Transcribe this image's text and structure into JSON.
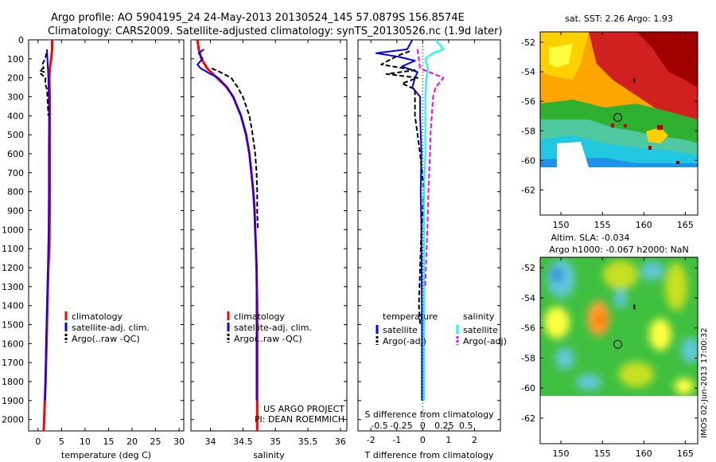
{
  "header": {
    "line1": "Argo profile: AO 5904195_24 24-May-2013 20130524_145 57.0879S 156.8574E",
    "line2": "Climatology: CARS2009. Satellite-adjusted climatology: synTS_20130526.nc (1.9d later)"
  },
  "colors": {
    "climatology": "#ff0000",
    "satellite": "#0000ff",
    "argo": "#000000",
    "salinity_satellite": "#00ffff",
    "salinity_argo": "#ff00ff"
  },
  "chart_data": [
    {
      "type": "line",
      "id": "temperature",
      "xlabel": "temperature (deg C)",
      "ylabel": "",
      "xlim": [
        -2,
        31
      ],
      "ylim": [
        2060,
        0
      ],
      "xticks": [
        0,
        5,
        10,
        15,
        20,
        25,
        30
      ],
      "yticks": [
        0,
        100,
        200,
        300,
        400,
        500,
        600,
        700,
        800,
        900,
        1000,
        1100,
        1200,
        1300,
        1400,
        1500,
        1600,
        1700,
        1800,
        1900,
        2000
      ],
      "legend": [
        "climatology",
        "satellite-adj. clim.",
        "Argo(..raw -QC)"
      ],
      "series": [
        {
          "key": "climatology",
          "style": "solid",
          "width": 3,
          "depth": [
            0,
            50,
            100,
            150,
            200,
            300,
            400,
            600,
            800,
            1000,
            1100,
            1200,
            1400,
            1600,
            1800,
            2000,
            2060
          ],
          "values": [
            3.0,
            3.0,
            2.8,
            2.5,
            2.4,
            2.5,
            2.5,
            2.5,
            2.5,
            2.45,
            2.4,
            2.2,
            2.0,
            1.8,
            1.6,
            1.3,
            1.2
          ]
        },
        {
          "key": "satellite",
          "style": "solid",
          "width": 2,
          "depth": [
            50,
            100,
            150,
            200,
            300,
            400,
            600,
            800,
            1000,
            1200,
            1400,
            1600,
            1800,
            1900
          ],
          "values": [
            1.9,
            2.0,
            2.1,
            2.2,
            2.3,
            2.35,
            2.3,
            2.3,
            2.25,
            2.1,
            1.9,
            1.7,
            1.55,
            1.5
          ]
        },
        {
          "key": "argo",
          "style": "dashed",
          "width": 2,
          "depth": [
            70,
            100,
            130,
            150,
            160,
            170,
            180,
            200,
            230,
            260,
            300,
            400
          ],
          "values": [
            1.8,
            1.5,
            0.9,
            1.2,
            0.3,
            1.3,
            0.6,
            1.6,
            1.5,
            1.9,
            2.0,
            2.2
          ]
        }
      ]
    },
    {
      "type": "line",
      "id": "salinity",
      "xlabel": "salinity",
      "ylabel": "",
      "xlim": [
        33.7,
        36.1
      ],
      "ylim": [
        2060,
        0
      ],
      "xticks": [
        34,
        34.5,
        35,
        35.5,
        36
      ],
      "legend": [
        "climatology",
        "satellite-adj. clim.",
        "Argo(..raw -QC)"
      ],
      "annotation": [
        "US ARGO PROJECT",
        "PI: DEAN ROEMMICH"
      ],
      "series": [
        {
          "key": "climatology",
          "style": "solid",
          "width": 3,
          "depth": [
            0,
            50,
            100,
            150,
            200,
            250,
            300,
            400,
            500,
            600,
            700,
            800,
            900,
            1000,
            1100,
            1200,
            1400,
            1600,
            1800,
            2000,
            2060
          ],
          "values": [
            33.8,
            33.82,
            33.86,
            33.95,
            34.1,
            34.25,
            34.35,
            34.47,
            34.55,
            34.6,
            34.63,
            34.66,
            34.68,
            34.69,
            34.7,
            34.71,
            34.72,
            34.72,
            34.72,
            34.72,
            34.72
          ]
        },
        {
          "key": "satellite",
          "style": "solid",
          "width": 2,
          "depth": [
            50,
            70,
            100,
            130,
            150,
            180,
            200,
            250,
            300,
            400,
            500,
            600,
            700,
            800,
            900,
            1000,
            1100,
            1200,
            1400,
            1600,
            1800,
            1900
          ],
          "values": [
            33.9,
            33.82,
            33.88,
            33.8,
            33.85,
            34.0,
            34.12,
            34.26,
            34.35,
            34.47,
            34.55,
            34.6,
            34.63,
            34.66,
            34.68,
            34.69,
            34.7,
            34.71,
            34.71,
            34.71,
            34.71,
            34.71
          ]
        },
        {
          "key": "argo",
          "style": "dashed",
          "width": 2,
          "depth": [
            150,
            170,
            200,
            250,
            300,
            400,
            500,
            600,
            700,
            800,
            900,
            1000
          ],
          "values": [
            34.02,
            34.15,
            34.32,
            34.42,
            34.5,
            34.6,
            34.65,
            34.69,
            34.71,
            34.72,
            34.72,
            34.73
          ]
        }
      ]
    },
    {
      "type": "line",
      "id": "difference",
      "xlabel": "T difference from climatology",
      "xlabel2": "S difference from climatology",
      "ylabel": "",
      "xlim": [
        -2.5,
        3
      ],
      "ylim": [
        2060,
        0
      ],
      "xticks": [
        -2,
        -1,
        0,
        1,
        2
      ],
      "xticks2": [
        "-0.5",
        "-0.25",
        "0",
        "0.25",
        "0.5"
      ],
      "xticks2_pos": [
        -1.67,
        -0.83,
        0,
        0.83,
        1.67
      ],
      "legend_temperature_title": "temperature",
      "legend_salinity_title": "salinity",
      "legend_temperature": [
        "satellite",
        "Argo(-adj)"
      ],
      "legend_salinity": [
        "satellite",
        "Argo(-adj)"
      ],
      "series": [
        {
          "key": "satellite",
          "style": "solid",
          "width": 2,
          "depth": [
            0,
            50,
            70,
            90,
            110,
            140,
            170,
            200,
            250,
            300,
            400,
            600,
            800,
            1000,
            1500,
            1900
          ],
          "values": [
            -0.4,
            -0.6,
            -1.8,
            -0.9,
            -0.3,
            -0.8,
            -0.2,
            -0.3,
            -0.4,
            -0.1,
            -0.1,
            -0.05,
            -0.08,
            -0.05,
            -0.03,
            -0.03
          ]
        },
        {
          "key": "argo",
          "style": "dashed",
          "width": 2,
          "depth": [
            60,
            80,
            100,
            130,
            160,
            180,
            200,
            230,
            260,
            300,
            400,
            600,
            800,
            1000,
            1200,
            1400,
            1500
          ],
          "values": [
            -0.5,
            -0.9,
            -1.2,
            -1.6,
            -0.3,
            -1.4,
            -0.2,
            -0.8,
            -0.3,
            -0.3,
            -0.3,
            -0.1,
            0.05,
            -0.05,
            -0.1,
            -0.15,
            -0.1
          ]
        },
        {
          "key": "salinity_satellite",
          "style": "solid",
          "width": 2,
          "depth": [
            0,
            50,
            70,
            100,
            150,
            200,
            300,
            400,
            600,
            800,
            1000,
            1500,
            1900
          ],
          "values": [
            0.5,
            0.8,
            0.4,
            0.1,
            0.2,
            0.15,
            0.1,
            0.1,
            0.1,
            0.05,
            0.05,
            0.05,
            0.05
          ]
        },
        {
          "key": "salinity_argo",
          "style": "dashed",
          "width": 2,
          "depth": [
            50,
            150,
            200,
            250,
            300,
            400,
            500,
            600,
            700,
            800,
            900,
            1000,
            1100,
            1200,
            1300
          ],
          "values": [
            -0.2,
            -0.1,
            0.8,
            0.5,
            0.4,
            0.35,
            0.3,
            0.28,
            0.25,
            0.22,
            0.2,
            0.18,
            0.15,
            0.12,
            0.1
          ]
        }
      ]
    }
  ],
  "maps": {
    "sst": {
      "title": "sat. SST: 2.26 Argo: 1.93",
      "xticks": [
        150,
        155,
        160,
        165
      ],
      "yticks": [
        -52,
        -54,
        -56,
        -58,
        -60,
        -62
      ]
    },
    "sla": {
      "title1": "Altim. SLA: -0.034",
      "title2": "Argo h1000: -0.067 h2000: NaN",
      "xticks": [
        150,
        155,
        160,
        165
      ],
      "yticks": [
        -52,
        -54,
        -56,
        -58,
        -60,
        -62
      ]
    },
    "xlim": [
      147.5,
      166.5
    ],
    "ylim": [
      -63.7,
      -51.3
    ],
    "data_extent_lat": [
      -60,
      -51.3
    ],
    "profile_location": {
      "lon": 156.86,
      "lat": -57.09
    },
    "sla_footer": "IMOS 02-Jun-2013 17:00:32"
  }
}
